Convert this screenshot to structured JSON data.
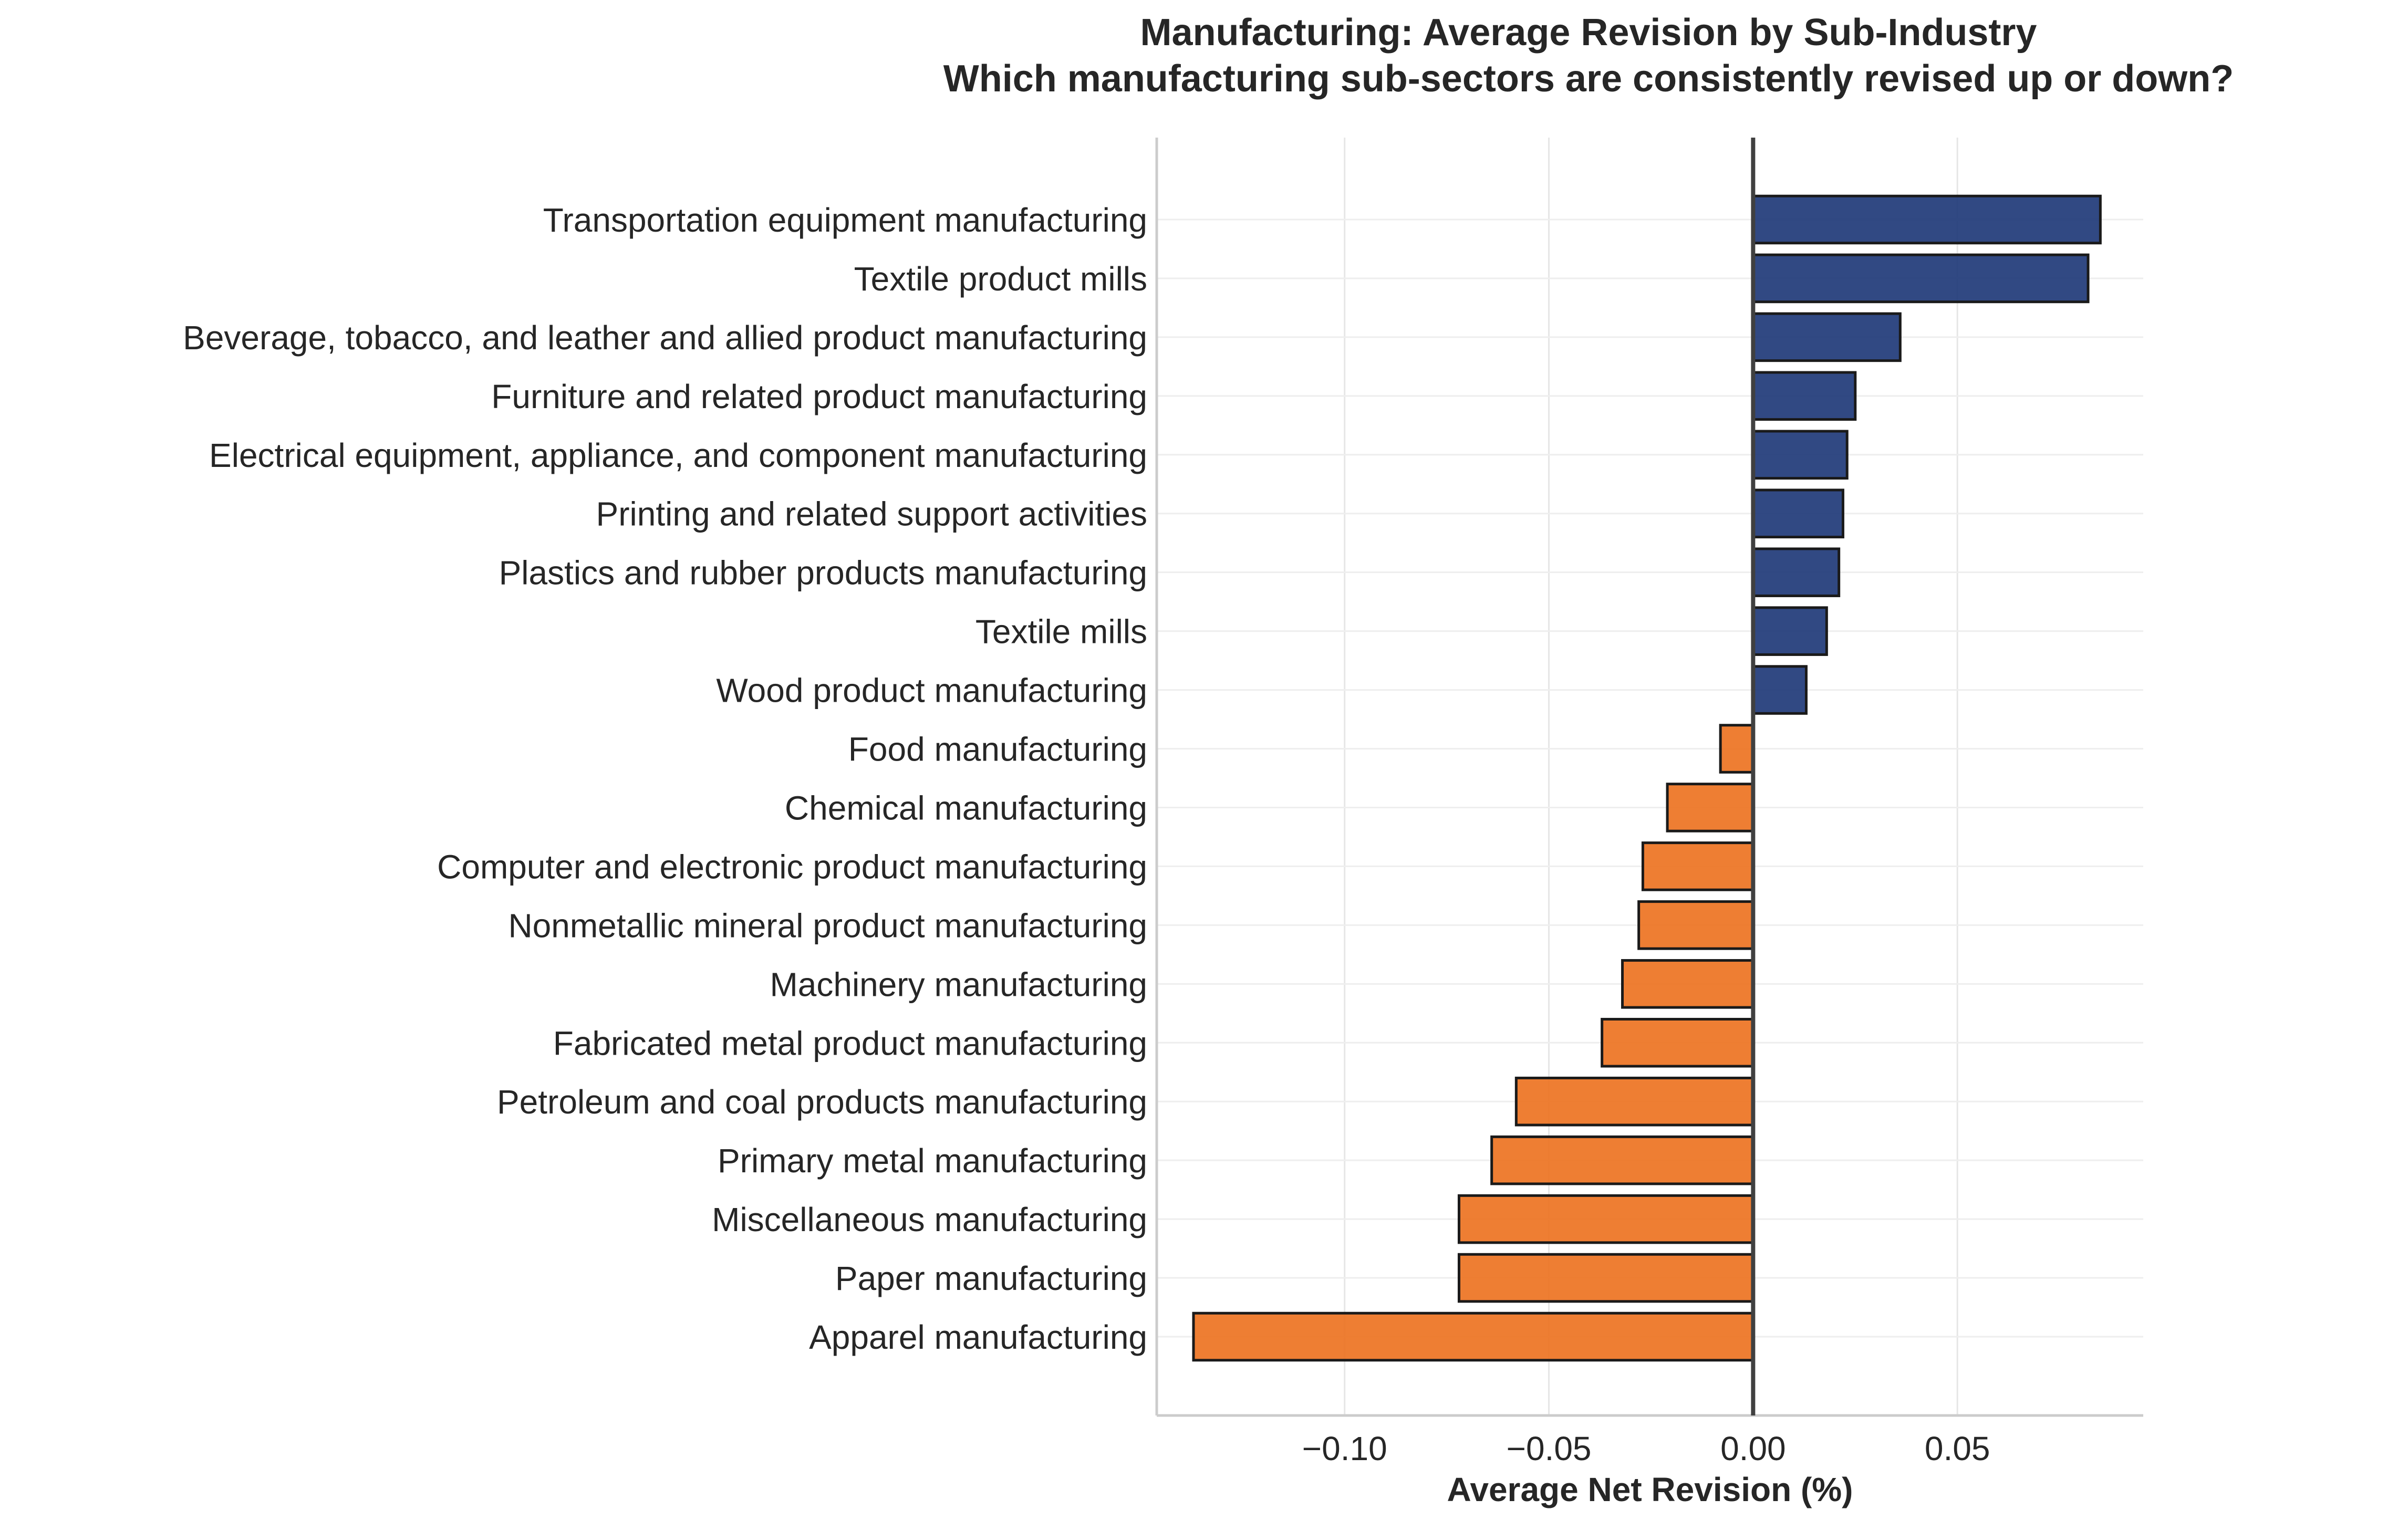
{
  "chart_data": {
    "type": "bar",
    "orientation": "horizontal",
    "title": "Manufacturing: Average Revision by Sub-Industry",
    "subtitle": "Which manufacturing sub-sectors are consistently revised up or down?",
    "xlabel": "Average Net Revision (%)",
    "ylabel": "",
    "xlim": [
      -0.146,
      0.0955
    ],
    "xticks": [
      -0.1,
      -0.05,
      0.0,
      0.05
    ],
    "xtick_labels": [
      "−0.10",
      "−0.05",
      "0.00",
      "0.05"
    ],
    "grid": true,
    "legend": "none",
    "colors": {
      "positive": "#1f3a78",
      "negative": "#ed7322",
      "edge": "#1a1a1a",
      "zero_line": "#404040"
    },
    "categories": [
      "Transportation equipment manufacturing",
      "Textile product mills",
      "Beverage, tobacco, and leather and allied product manufacturing",
      "Furniture and related product manufacturing",
      "Electrical equipment, appliance, and component manufacturing",
      "Printing and related support activities",
      "Plastics and rubber products manufacturing",
      "Textile mills",
      "Wood product manufacturing",
      "Food manufacturing",
      "Chemical manufacturing",
      "Computer and electronic product manufacturing",
      "Nonmetallic mineral product manufacturing",
      "Machinery manufacturing",
      "Fabricated metal product manufacturing",
      "Petroleum and coal products manufacturing",
      "Primary metal manufacturing",
      "Miscellaneous manufacturing",
      "Paper manufacturing",
      "Apparel manufacturing"
    ],
    "values": [
      0.085,
      0.082,
      0.036,
      0.025,
      0.023,
      0.022,
      0.021,
      0.018,
      0.013,
      -0.008,
      -0.021,
      -0.027,
      -0.028,
      -0.032,
      -0.037,
      -0.058,
      -0.064,
      -0.072,
      -0.072,
      -0.137
    ]
  }
}
